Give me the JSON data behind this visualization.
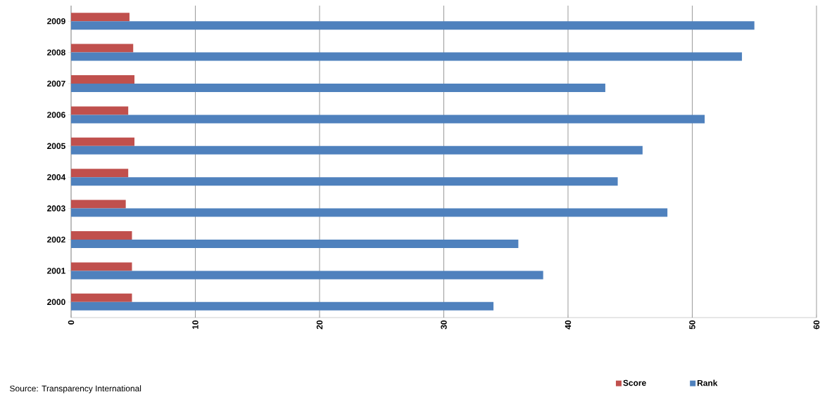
{
  "chart_data": {
    "type": "bar",
    "orientation": "horizontal",
    "categories": [
      "2009",
      "2008",
      "2007",
      "2006",
      "2005",
      "2004",
      "2003",
      "2002",
      "2001",
      "2000"
    ],
    "series": [
      {
        "name": "Score",
        "color": "#c0504d",
        "values": [
          4.7,
          5.0,
          5.1,
          4.6,
          5.1,
          4.6,
          4.4,
          4.9,
          4.9,
          4.9
        ]
      },
      {
        "name": "Rank",
        "color": "#4f81bd",
        "values": [
          55,
          54,
          43,
          51,
          46,
          44,
          48,
          36,
          38,
          34
        ]
      }
    ],
    "xlim": [
      0,
      60
    ],
    "xticks": [
      0,
      10,
      20,
      30,
      40,
      50,
      60
    ],
    "grid": "x",
    "legend": "bottom right",
    "annotations": [
      "Source: Transparency  International"
    ]
  }
}
